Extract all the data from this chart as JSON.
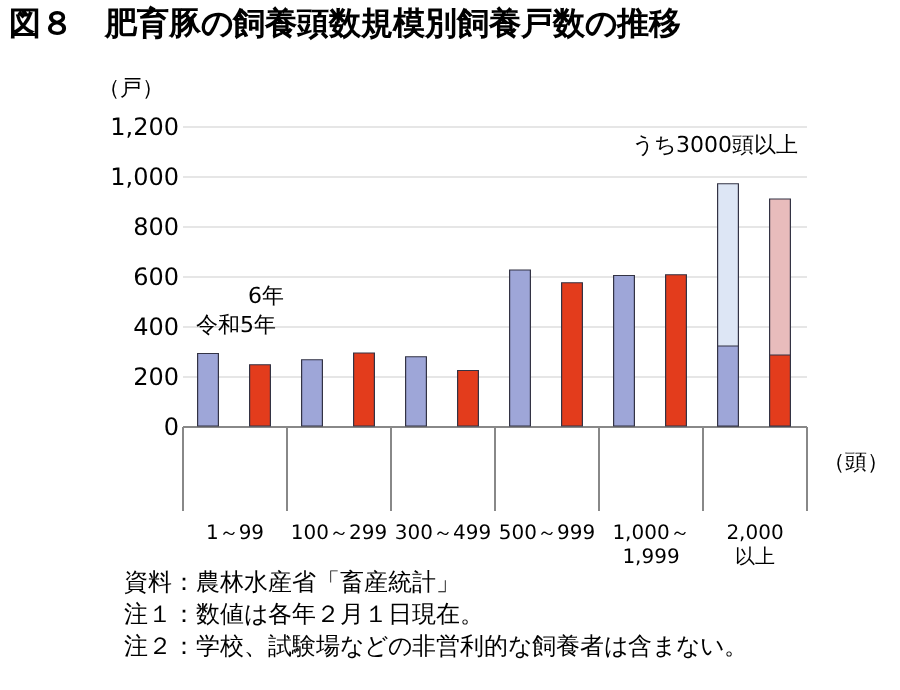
{
  "chart_data": {
    "type": "bar",
    "title": "図８　肥育豚の飼養頭数規模別飼養戸数の推移",
    "ylabel": "（戸）",
    "xlabel": "（頭）",
    "categories": [
      "1～99",
      "100～299",
      "300～499",
      "500～999",
      "1,000～\n1,999",
      "2,000\n以上"
    ],
    "series": [
      {
        "name": "令和5年",
        "color": "#9ea6d8",
        "values": [
          290,
          265,
          277,
          624,
          602,
          320
        ]
      },
      {
        "name": "6年",
        "color": "#e33c1c",
        "values": [
          245,
          292,
          222,
          573,
          605,
          284
        ]
      },
      {
        "color": "#dde6f5",
        "values": [
          null,
          null,
          null,
          null,
          null,
          969
        ]
      },
      {
        "color": "#e8bcbc",
        "values": [
          null,
          null,
          null,
          null,
          null,
          908
        ]
      }
    ],
    "ylim": [
      0,
      1200
    ],
    "yticks": [
      0,
      200,
      400,
      600,
      800,
      {
        "value": 1000,
        "label": "1,000"
      },
      {
        "value": 1200,
        "label": "1,200"
      }
    ],
    "grid": "y",
    "annotations": [
      "うち3000頭以上",
      "資料：農林水産省「畜産統計」",
      "注１：数値は各年２月１日現在。",
      "注２：学校、試験場などの非営利的な飼養者は含まない。"
    ]
  }
}
